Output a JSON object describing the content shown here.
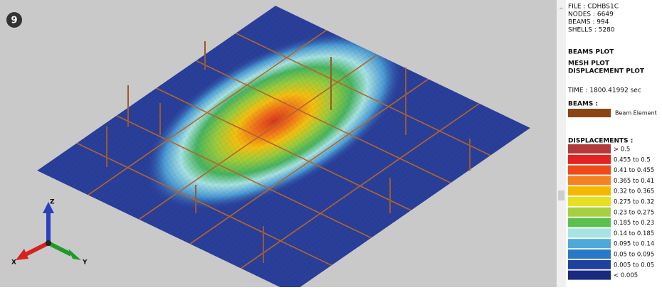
{
  "badge": "9",
  "axes": {
    "x": "X",
    "y": "Y",
    "z": "Z"
  },
  "info": {
    "file": "FILE : CDHBS1C",
    "nodes": "NODES : 6649",
    "beams": "BEAMS : 994",
    "shells": "SHELLS : 5280",
    "beams_plot": "BEAMS PLOT",
    "mesh_plot": "MESH PLOT",
    "displacement_plot": "DISPLACEMENT PLOT",
    "time": "TIME : 1800.41992 sec"
  },
  "beams_legend": {
    "title": "BEAMS :",
    "label": "Beam Element",
    "color": "#8b4513"
  },
  "displacements": {
    "title": "DISPLACEMENTS :",
    "items": [
      {
        "label": "> 0.5",
        "color": "#b23a3a"
      },
      {
        "label": "0.455 to 0.5",
        "color": "#e52222"
      },
      {
        "label": "0.41 to 0.455",
        "color": "#f04a1a"
      },
      {
        "label": "0.365 to 0.41",
        "color": "#f5821f"
      },
      {
        "label": "0.32 to 0.365",
        "color": "#f5b800"
      },
      {
        "label": "0.275 to 0.32",
        "color": "#e6e020"
      },
      {
        "label": "0.23 to 0.275",
        "color": "#a6d040"
      },
      {
        "label": "0.185 to 0.23",
        "color": "#5cc050"
      },
      {
        "label": "0.14 to 0.185",
        "color": "#a8e2e2"
      },
      {
        "label": "0.095 to 0.14",
        "color": "#50a8d8"
      },
      {
        "label": "0.05 to 0.095",
        "color": "#2a78c8"
      },
      {
        "label": "0.005 to 0.05",
        "color": "#20409e"
      },
      {
        "label": "< 0.005",
        "color": "#1a2a80"
      }
    ]
  }
}
